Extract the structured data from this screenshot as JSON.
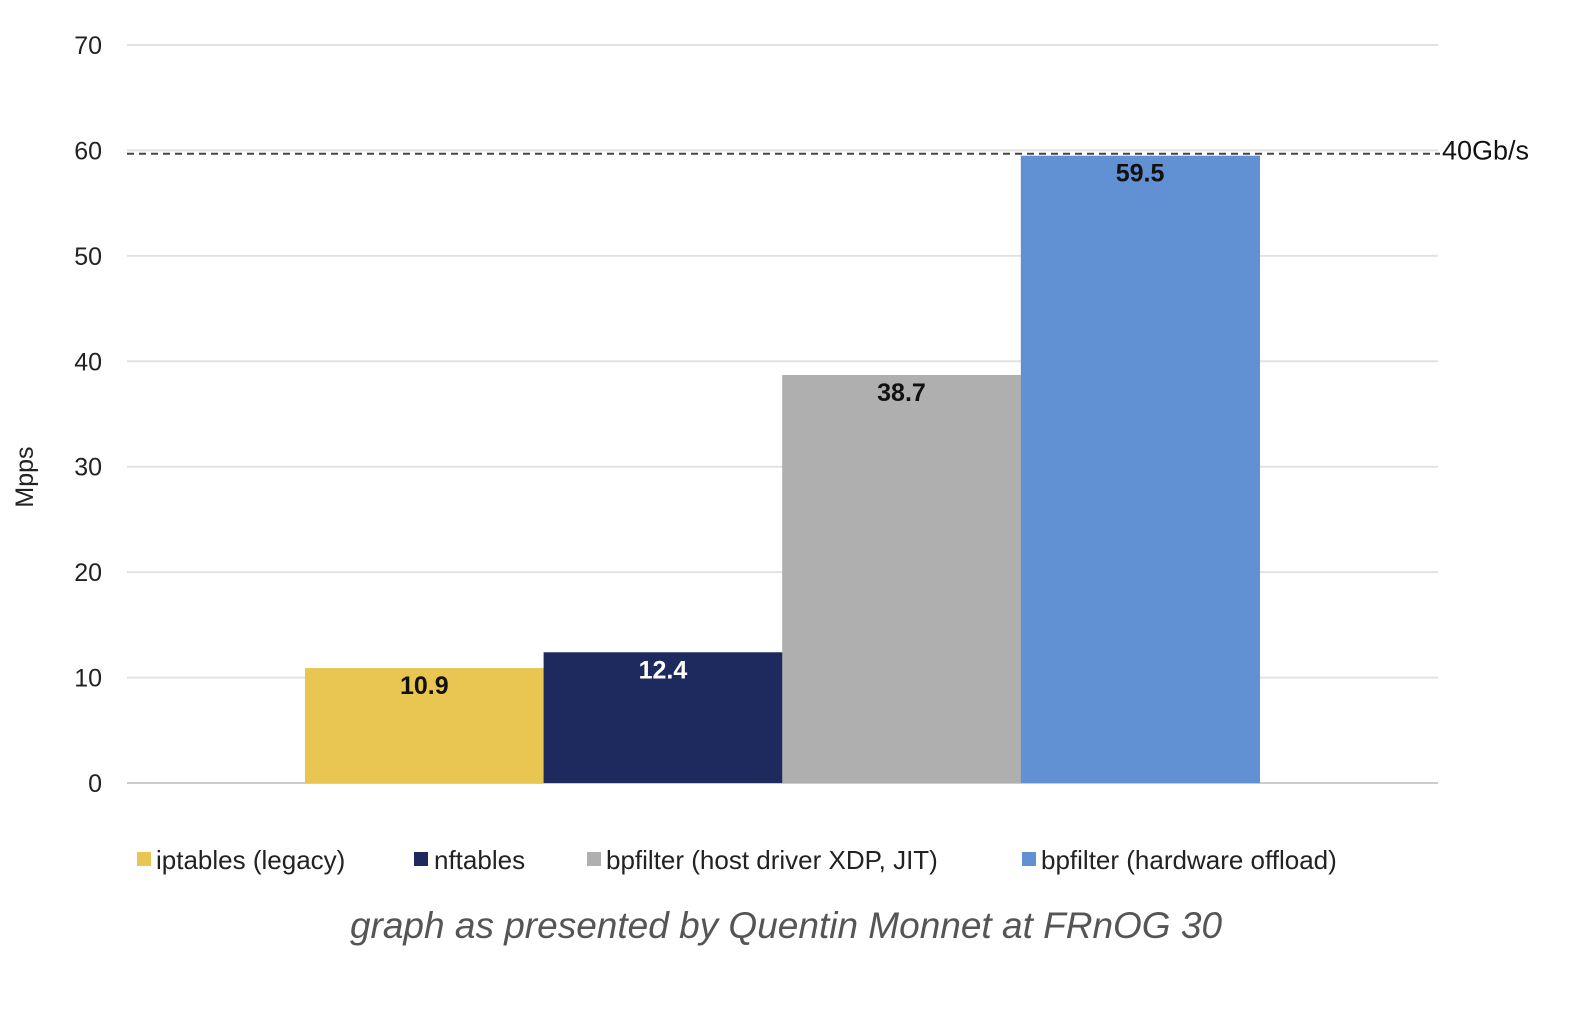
{
  "chart_data": {
    "type": "bar",
    "categories": [
      "iptables (legacy)",
      "nftables",
      "bpfilter (host driver XDP, JIT)",
      "bpfilter (hardware offload)"
    ],
    "values": [
      10.9,
      12.4,
      38.7,
      59.5
    ],
    "value_labels": [
      "10.9",
      "12.4",
      "38.7",
      "59.5"
    ],
    "colors": [
      "#E9C651",
      "#1E2A5E",
      "#AFAFAF",
      "#6291D3"
    ],
    "label_colors": [
      "#111111",
      "#ffffff",
      "#111111",
      "#111111"
    ],
    "ylabel": "Mpps",
    "ylim": [
      0,
      70
    ],
    "yticks": [
      0,
      10,
      20,
      30,
      40,
      50,
      60,
      70
    ],
    "grid": true,
    "legend": "bottom",
    "reference_line": {
      "value": 59.5,
      "label": "40Gb/s",
      "style": "dashed"
    }
  },
  "caption": "graph as presented by Quentin Monnet at FRnOG 30"
}
